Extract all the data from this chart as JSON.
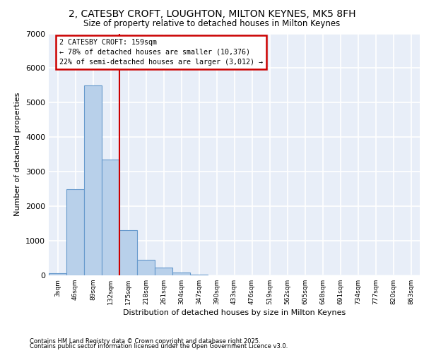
{
  "title": "2, CATESBY CROFT, LOUGHTON, MILTON KEYNES, MK5 8FH",
  "subtitle": "Size of property relative to detached houses in Milton Keynes",
  "xlabel": "Distribution of detached houses by size in Milton Keynes",
  "ylabel": "Number of detached properties",
  "categories": [
    "3sqm",
    "46sqm",
    "89sqm",
    "132sqm",
    "175sqm",
    "218sqm",
    "261sqm",
    "304sqm",
    "347sqm",
    "390sqm",
    "433sqm",
    "476sqm",
    "519sqm",
    "562sqm",
    "605sqm",
    "648sqm",
    "691sqm",
    "734sqm",
    "777sqm",
    "820sqm",
    "863sqm"
  ],
  "values": [
    60,
    2500,
    5500,
    3350,
    1300,
    450,
    220,
    80,
    30,
    0,
    0,
    0,
    0,
    0,
    0,
    0,
    0,
    0,
    0,
    0,
    0
  ],
  "bar_color": "#b8d0ea",
  "bar_edge_color": "#6699cc",
  "vline_color": "#cc0000",
  "vline_pos": 3.5,
  "annotation_box_text": "2 CATESBY CROFT: 159sqm\n← 78% of detached houses are smaller (10,376)\n22% of semi-detached houses are larger (3,012) →",
  "annotation_box_color": "#cc0000",
  "bg_color": "#e8eef8",
  "grid_color": "#ffffff",
  "footer_line1": "Contains HM Land Registry data © Crown copyright and database right 2025.",
  "footer_line2": "Contains public sector information licensed under the Open Government Licence v3.0.",
  "ylim": [
    0,
    7000
  ],
  "yticks": [
    0,
    1000,
    2000,
    3000,
    4000,
    5000,
    6000,
    7000
  ]
}
